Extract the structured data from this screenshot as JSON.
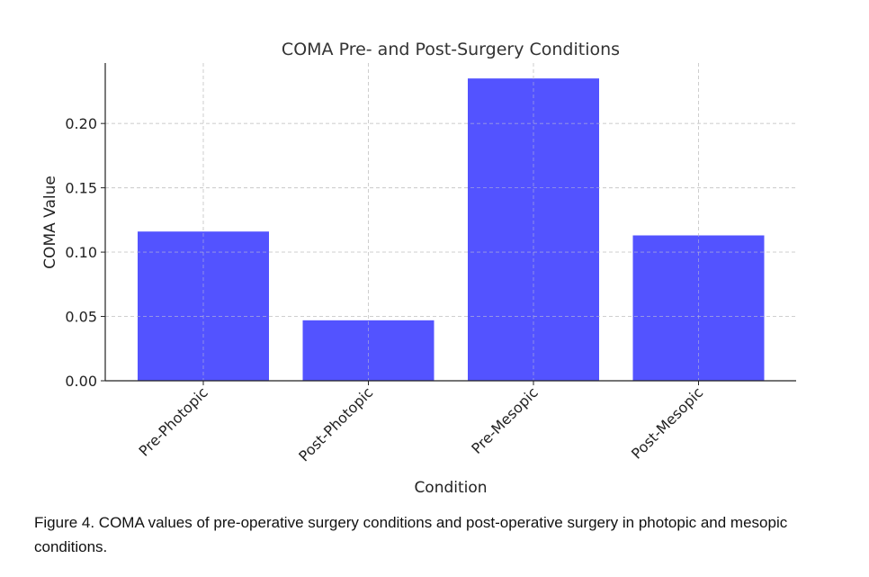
{
  "chart_data": {
    "type": "bar",
    "title": "COMA Pre- and Post-Surgery Conditions",
    "xlabel": "Condition",
    "ylabel": "COMA Value",
    "categories": [
      "Pre-Photopic",
      "Post-Photopic",
      "Pre-Mesopic",
      "Post-Mesopic"
    ],
    "values": [
      0.116,
      0.047,
      0.235,
      0.113
    ],
    "ylim": [
      0,
      0.247
    ],
    "yticks": [
      "0.00",
      "0.05",
      "0.10",
      "0.15",
      "0.20"
    ],
    "grid": true,
    "bar_color": "#4a4aff"
  },
  "caption": "Figure 4. COMA values of pre-operative surgery conditions and post-operative surgery in photopic and mesopic conditions."
}
